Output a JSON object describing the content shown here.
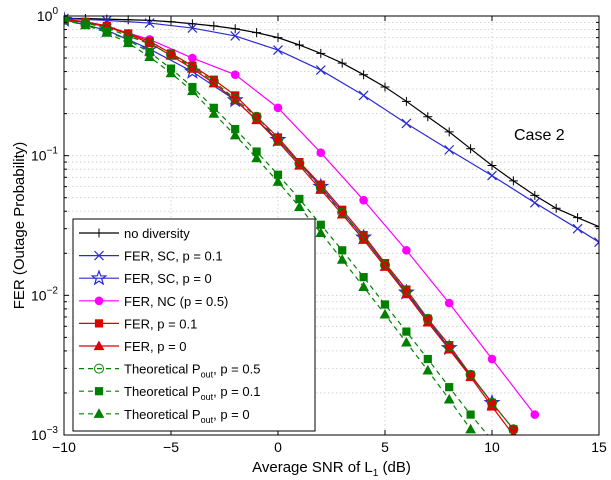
{
  "chart_data": {
    "type": "line",
    "xlabel": "Average SNR of L",
    "xlabel_sub": "1",
    "xlabel_suffix": " (dB)",
    "ylabel": "FER (Outage Probability)",
    "annotation": "Case 2",
    "xlim": [
      -10,
      15
    ],
    "ylim": [
      0.001,
      1
    ],
    "yscale": "log",
    "grid": true,
    "legend_position": "bottom-left",
    "x_ticks": [
      -10,
      -5,
      0,
      5,
      10,
      15
    ],
    "x_tick_labels": [
      "−10",
      "−5",
      "0",
      "5",
      "10",
      "15"
    ],
    "y_ticks": [
      {
        "value": 1,
        "base": "10",
        "exp": "0"
      },
      {
        "value": 0.1,
        "base": "10",
        "exp": "−1"
      },
      {
        "value": 0.01,
        "base": "10",
        "exp": "−2"
      },
      {
        "value": 0.001,
        "base": "10",
        "exp": "−3"
      }
    ],
    "series": [
      {
        "name": "no diversity",
        "color": "#000000",
        "marker": "plus",
        "dash": "solid",
        "x": [
          -10,
          -9,
          -8,
          -7,
          -6,
          -5,
          -4,
          -3,
          -2,
          -1,
          0,
          1,
          2,
          3,
          4,
          5,
          6,
          7,
          8,
          9,
          10,
          11,
          12,
          13,
          14,
          15
        ],
        "y": [
          0.96,
          0.96,
          0.95,
          0.94,
          0.93,
          0.91,
          0.88,
          0.85,
          0.81,
          0.76,
          0.7,
          0.62,
          0.54,
          0.46,
          0.38,
          0.31,
          0.245,
          0.19,
          0.148,
          0.112,
          0.085,
          0.066,
          0.052,
          0.042,
          0.036,
          0.031
        ]
      },
      {
        "name": "FER, SC, p = 0.1",
        "color": "#2b2bd6",
        "marker": "x",
        "dash": "solid",
        "x": [
          -10,
          -8,
          -6,
          -4,
          -2,
          0,
          2,
          4,
          6,
          8,
          10,
          12,
          14,
          15
        ],
        "y": [
          0.96,
          0.93,
          0.89,
          0.82,
          0.72,
          0.57,
          0.41,
          0.27,
          0.17,
          0.11,
          0.072,
          0.046,
          0.03,
          0.024
        ]
      },
      {
        "name": "FER, SC, p = 0",
        "color": "#2b2bd6",
        "marker": "star",
        "dash": "solid",
        "x": [
          -10,
          -8,
          -6,
          -4,
          -2,
          0,
          2,
          4,
          6,
          8,
          10
        ],
        "y": [
          0.94,
          0.79,
          0.58,
          0.4,
          0.25,
          0.13,
          0.06,
          0.026,
          0.0105,
          0.0042,
          0.0017
        ]
      },
      {
        "name": "FER, NC (p = 0.5)",
        "color": "#ff00ff",
        "marker": "circle-filled",
        "dash": "solid",
        "x": [
          -10,
          -8,
          -6,
          -4,
          -2,
          0,
          2,
          4,
          6,
          8,
          10,
          12
        ],
        "y": [
          0.95,
          0.84,
          0.68,
          0.5,
          0.38,
          0.22,
          0.105,
          0.048,
          0.021,
          0.0088,
          0.0035,
          0.0014
        ]
      },
      {
        "name": "FER, p = 0.1",
        "color": "#dd0000",
        "marker": "square-filled",
        "dash": "solid",
        "x": [
          -10,
          -9,
          -8,
          -7,
          -6,
          -5,
          -4,
          -3,
          -2,
          -1,
          0,
          1,
          2,
          3,
          4,
          5,
          6,
          7,
          8,
          9,
          10,
          11
        ],
        "y": [
          0.95,
          0.91,
          0.85,
          0.75,
          0.66,
          0.54,
          0.44,
          0.35,
          0.27,
          0.19,
          0.135,
          0.09,
          0.062,
          0.041,
          0.027,
          0.017,
          0.011,
          0.0068,
          0.0044,
          0.0027,
          0.0017,
          0.0011
        ]
      },
      {
        "name": "FER, p = 0",
        "color": "#dd0000",
        "marker": "triangle-filled",
        "dash": "solid",
        "x": [
          -10,
          -9,
          -8,
          -7,
          -6,
          -5,
          -4,
          -3,
          -2,
          -1,
          0,
          1,
          2,
          3,
          4,
          5,
          6,
          7,
          8,
          9,
          10,
          11
        ],
        "y": [
          0.95,
          0.9,
          0.84,
          0.74,
          0.64,
          0.52,
          0.42,
          0.33,
          0.25,
          0.18,
          0.126,
          0.085,
          0.057,
          0.038,
          0.025,
          0.016,
          0.0102,
          0.0064,
          0.0041,
          0.0026,
          0.0016,
          0.001
        ]
      },
      {
        "name": "Theoretical P_out, p = 0.5",
        "color": "#008000",
        "marker": "circle-open",
        "dash": "dashed",
        "x": [
          -10,
          -9,
          -8,
          -7,
          -6,
          -5,
          -4,
          -3,
          -2,
          -1,
          0,
          1,
          2,
          3,
          4,
          5,
          6,
          7,
          8,
          9,
          10,
          11
        ],
        "y": [
          0.94,
          0.89,
          0.82,
          0.72,
          0.63,
          0.53,
          0.43,
          0.34,
          0.255,
          0.19,
          0.13,
          0.088,
          0.059,
          0.039,
          0.026,
          0.0165,
          0.0107,
          0.0068,
          0.0043,
          0.0027,
          0.0017,
          0.0011
        ]
      },
      {
        "name": "Theoretical P_out, p = 0.1",
        "color": "#008000",
        "marker": "square-filled",
        "dash": "dashed",
        "x": [
          -10,
          -9,
          -8,
          -7,
          -6,
          -5,
          -4,
          -3,
          -2,
          -1,
          0,
          1,
          2,
          3,
          4,
          5,
          6,
          7,
          8,
          9,
          10
        ],
        "y": [
          0.93,
          0.87,
          0.78,
          0.67,
          0.55,
          0.42,
          0.31,
          0.22,
          0.155,
          0.107,
          0.073,
          0.049,
          0.032,
          0.021,
          0.0135,
          0.0086,
          0.0055,
          0.0035,
          0.0022,
          0.0014,
          0.00092
        ]
      },
      {
        "name": "Theoretical P_out, p = 0",
        "color": "#008000",
        "marker": "triangle-filled",
        "dash": "dashed",
        "x": [
          -10,
          -9,
          -8,
          -7,
          -6,
          -5,
          -4,
          -3,
          -2,
          -1,
          0,
          1,
          2,
          3,
          4,
          5,
          6,
          7,
          8,
          9
        ],
        "y": [
          0.93,
          0.86,
          0.76,
          0.64,
          0.51,
          0.39,
          0.29,
          0.2,
          0.14,
          0.096,
          0.065,
          0.043,
          0.028,
          0.018,
          0.0115,
          0.0073,
          0.0046,
          0.0029,
          0.0018,
          0.0011
        ]
      }
    ]
  },
  "legend": [
    {
      "label": "no diversity"
    },
    {
      "label": "FER, SC, p = 0.1"
    },
    {
      "label": "FER, SC, p = 0"
    },
    {
      "label": "FER, NC (p = 0.5)"
    },
    {
      "label": "FER, p = 0.1"
    },
    {
      "label": "FER, p = 0"
    },
    {
      "label": "Theoretical P",
      "sub": "out",
      "suffix": ", p = 0.5"
    },
    {
      "label": "Theoretical P",
      "sub": "out",
      "suffix": ", p = 0.1"
    },
    {
      "label": "Theoretical P",
      "sub": "out",
      "suffix": ", p = 0"
    }
  ]
}
